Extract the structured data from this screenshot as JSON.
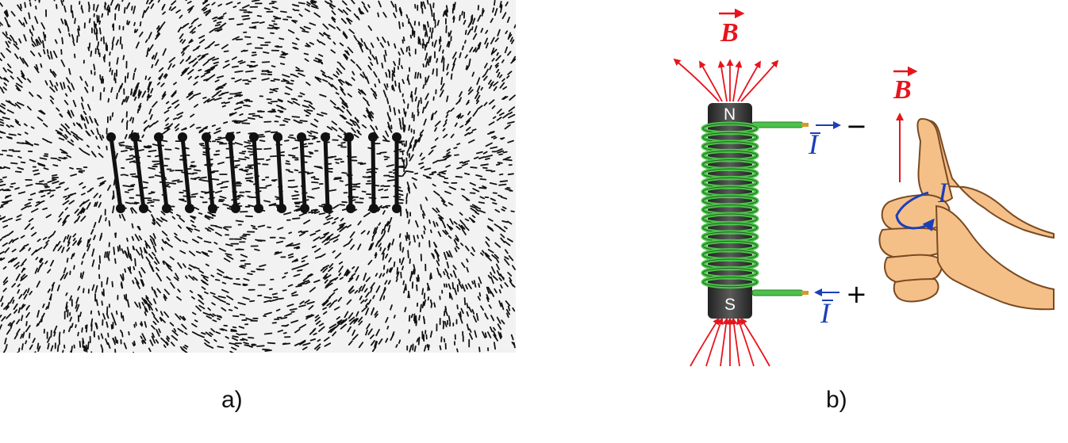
{
  "captions": {
    "a": "a)",
    "b": "b)"
  },
  "panel_b": {
    "field_label_top": "B",
    "field_label_hand": "B",
    "current_label_top": "I",
    "current_label_bottom": "I",
    "current_label_hand": "I",
    "pole_north": "N",
    "pole_south": "S",
    "terminal_top_sign": "−",
    "terminal_bottom_sign": "+"
  },
  "colors": {
    "field": "#e8141c",
    "current": "#1a3fb8",
    "coil": "#4cc24a",
    "core": "#3a3a3a",
    "skin": "#f5c088"
  }
}
